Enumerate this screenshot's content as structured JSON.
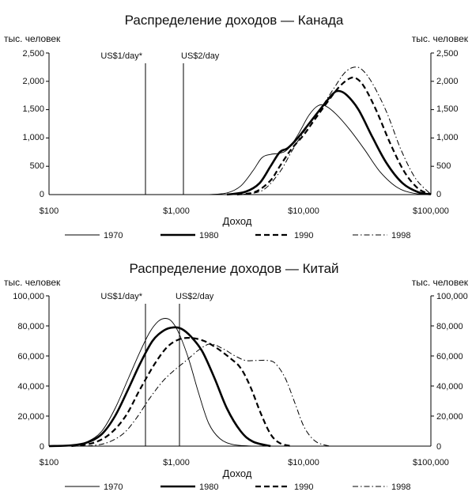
{
  "charts": [
    {
      "title": "Распределение доходов — Канада",
      "y_unit_left": "тыс. человек",
      "y_unit_right": "тыс. человек",
      "xlabel": "Доход",
      "y_ticks": [
        "0",
        "500",
        "1,000",
        "1,500",
        "2,000",
        "2,500"
      ],
      "x_ticks": [
        "$100",
        "$1,000",
        "$10,000",
        "$100,000"
      ],
      "ref1": "US$1/day*",
      "ref2": "US$2/day",
      "legend": [
        "1970",
        "1980",
        "1990",
        "1998"
      ]
    },
    {
      "title": "Распределение доходов — Китай",
      "y_unit_left": "тыс. человек",
      "y_unit_right": "тыс. человек",
      "xlabel": "Доход",
      "y_ticks": [
        "0",
        "20,000",
        "40,000",
        "60,000",
        "80,000",
        "100,000"
      ],
      "x_ticks": [
        "$100",
        "$1,000",
        "$10,000",
        "$100,000"
      ],
      "ref1": "US$1/day*",
      "ref2": "US$2/day",
      "legend": [
        "1970",
        "1980",
        "1990",
        "1998"
      ]
    }
  ],
  "chart_data": [
    {
      "type": "line",
      "title": "Распределение доходов — Канада",
      "xlabel": "Доход",
      "ylabel": "тыс. человек",
      "x_scale": "log",
      "xlim": [
        100,
        100000
      ],
      "ylim": [
        0,
        2500
      ],
      "y_ticks": [
        0,
        500,
        1000,
        1500,
        2000,
        2500
      ],
      "x_ticks": [
        100,
        1000,
        10000,
        100000
      ],
      "reference_lines": [
        {
          "label": "US$1/day*",
          "x": 570
        },
        {
          "label": "US$2/day",
          "x": 1140
        }
      ],
      "legend_position": "bottom",
      "grid": false,
      "series": [
        {
          "name": "1970",
          "style": "thin-solid",
          "points": [
            [
              1800,
              0
            ],
            [
              2500,
              30
            ],
            [
              3200,
              150
            ],
            [
              4000,
              420
            ],
            [
              4700,
              650
            ],
            [
              5500,
              710
            ],
            [
              6500,
              730
            ],
            [
              7500,
              800
            ],
            [
              9000,
              1050
            ],
            [
              11000,
              1400
            ],
            [
              13000,
              1570
            ],
            [
              15000,
              1560
            ],
            [
              18000,
              1420
            ],
            [
              23000,
              1150
            ],
            [
              30000,
              800
            ],
            [
              40000,
              400
            ],
            [
              55000,
              120
            ],
            [
              75000,
              20
            ],
            [
              100000,
              0
            ]
          ]
        },
        {
          "name": "1980",
          "style": "thick-solid",
          "points": [
            [
              2500,
              0
            ],
            [
              3500,
              50
            ],
            [
              4500,
              200
            ],
            [
              5500,
              500
            ],
            [
              6500,
              750
            ],
            [
              7500,
              820
            ],
            [
              9000,
              1000
            ],
            [
              11000,
              1250
            ],
            [
              14000,
              1550
            ],
            [
              17000,
              1780
            ],
            [
              19000,
              1830
            ],
            [
              22000,
              1750
            ],
            [
              27000,
              1500
            ],
            [
              35000,
              1000
            ],
            [
              45000,
              550
            ],
            [
              60000,
              200
            ],
            [
              80000,
              40
            ],
            [
              100000,
              5
            ]
          ]
        },
        {
          "name": "1990",
          "style": "dashed",
          "points": [
            [
              3000,
              0
            ],
            [
              4200,
              50
            ],
            [
              5500,
              250
            ],
            [
              6500,
              500
            ],
            [
              8000,
              800
            ],
            [
              10000,
              1050
            ],
            [
              12000,
              1300
            ],
            [
              15000,
              1600
            ],
            [
              19000,
              1900
            ],
            [
              23000,
              2050
            ],
            [
              26000,
              2050
            ],
            [
              30000,
              1900
            ],
            [
              37000,
              1500
            ],
            [
              48000,
              900
            ],
            [
              62000,
              400
            ],
            [
              80000,
              100
            ],
            [
              100000,
              10
            ]
          ]
        },
        {
          "name": "1998",
          "style": "dash-dot",
          "points": [
            [
              3300,
              0
            ],
            [
              4800,
              80
            ],
            [
              6500,
              400
            ],
            [
              8000,
              750
            ],
            [
              10000,
              1100
            ],
            [
              13000,
              1450
            ],
            [
              17000,
              1850
            ],
            [
              21000,
              2150
            ],
            [
              25000,
              2250
            ],
            [
              29000,
              2200
            ],
            [
              35000,
              1950
            ],
            [
              45000,
              1450
            ],
            [
              58000,
              800
            ],
            [
              75000,
              300
            ],
            [
              95000,
              50
            ],
            [
              100000,
              20
            ]
          ]
        }
      ]
    },
    {
      "type": "line",
      "title": "Распределение доходов — Китай",
      "xlabel": "Доход",
      "ylabel": "тыс. человек",
      "x_scale": "log",
      "xlim": [
        100,
        100000
      ],
      "ylim": [
        0,
        100000
      ],
      "y_ticks": [
        0,
        20000,
        40000,
        60000,
        80000,
        100000
      ],
      "x_ticks": [
        100,
        1000,
        10000,
        100000
      ],
      "reference_lines": [
        {
          "label": "US$1/day*",
          "x": 570
        },
        {
          "label": "US$2/day",
          "x": 1050
        }
      ],
      "legend_position": "bottom",
      "grid": false,
      "series": [
        {
          "name": "1970",
          "style": "thin-solid",
          "points": [
            [
              100,
              0
            ],
            [
              150,
              500
            ],
            [
              200,
              3000
            ],
            [
              260,
              10000
            ],
            [
              330,
              25000
            ],
            [
              420,
              45000
            ],
            [
              520,
              63000
            ],
            [
              620,
              76000
            ],
            [
              720,
              83000
            ],
            [
              820,
              85000
            ],
            [
              920,
              83000
            ],
            [
              1050,
              75000
            ],
            [
              1250,
              58000
            ],
            [
              1500,
              35000
            ],
            [
              1800,
              15000
            ],
            [
              2200,
              5000
            ],
            [
              2800,
              1000
            ],
            [
              4000,
              0
            ]
          ]
        },
        {
          "name": "1980",
          "style": "thick-solid",
          "points": [
            [
              100,
              0
            ],
            [
              150,
              500
            ],
            [
              200,
              2500
            ],
            [
              260,
              8000
            ],
            [
              330,
              20000
            ],
            [
              420,
              38000
            ],
            [
              520,
              55000
            ],
            [
              650,
              70000
            ],
            [
              800,
              77000
            ],
            [
              950,
              79000
            ],
            [
              1100,
              78000
            ],
            [
              1300,
              73000
            ],
            [
              1600,
              63000
            ],
            [
              2000,
              45000
            ],
            [
              2500,
              25000
            ],
            [
              3200,
              10000
            ],
            [
              4000,
              3000
            ],
            [
              5500,
              0
            ]
          ]
        },
        {
          "name": "1990",
          "style": "dashed",
          "points": [
            [
              150,
              0
            ],
            [
              220,
              2000
            ],
            [
              300,
              8000
            ],
            [
              400,
              20000
            ],
            [
              520,
              38000
            ],
            [
              680,
              55000
            ],
            [
              850,
              66000
            ],
            [
              1050,
              71000
            ],
            [
              1300,
              72000
            ],
            [
              1650,
              70000
            ],
            [
              2100,
              65000
            ],
            [
              2700,
              58000
            ],
            [
              3200,
              52000
            ],
            [
              3800,
              40000
            ],
            [
              4600,
              22000
            ],
            [
              5500,
              8000
            ],
            [
              6500,
              2000
            ],
            [
              8000,
              0
            ]
          ]
        },
        {
          "name": "1998",
          "style": "dash-dot",
          "points": [
            [
              200,
              0
            ],
            [
              280,
              2000
            ],
            [
              380,
              8000
            ],
            [
              480,
              18000
            ],
            [
              620,
              32000
            ],
            [
              780,
              43000
            ],
            [
              950,
              50000
            ],
            [
              1200,
              57000
            ],
            [
              1500,
              64000
            ],
            [
              1850,
              68000
            ],
            [
              2300,
              65000
            ],
            [
              2900,
              60000
            ],
            [
              3500,
              57000
            ],
            [
              4300,
              57000
            ],
            [
              5200,
              57000
            ],
            [
              6000,
              55000
            ],
            [
              7200,
              45000
            ],
            [
              8600,
              28000
            ],
            [
              10200,
              12000
            ],
            [
              12500,
              3000
            ],
            [
              16000,
              0
            ]
          ]
        }
      ]
    }
  ]
}
